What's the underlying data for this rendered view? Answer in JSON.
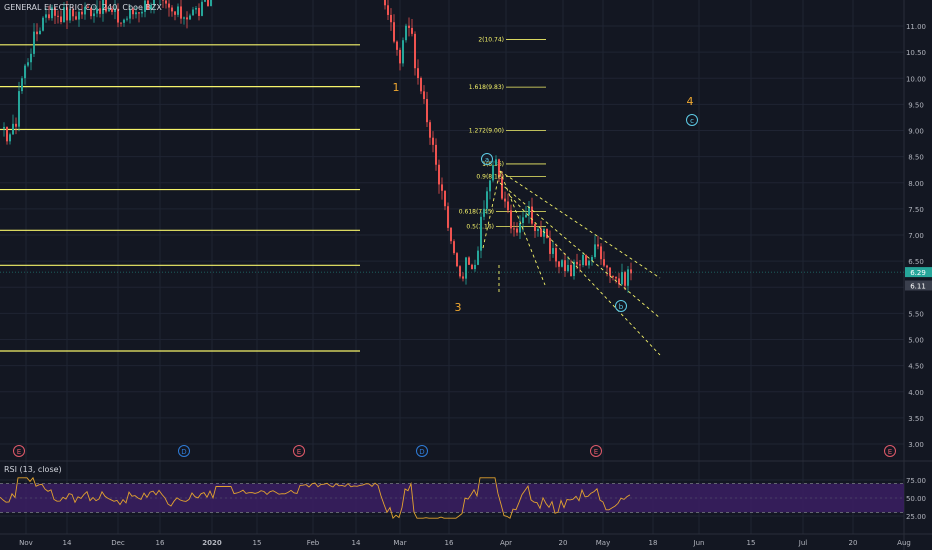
{
  "symbol_title": "GENERAL ELECTRIC CO, 240, Cboe BZX",
  "rsi_title": "RSI (13, close)",
  "colors": {
    "background": "#131722",
    "grid": "#1f2433",
    "up": "#26a69a",
    "down": "#ef5350",
    "level": "#f5f36a",
    "wave": "#f0a830",
    "circle": "#5ecbe6",
    "rsi_line": "#e3a32f",
    "rsi_band": "#3b1f63",
    "axis_text": "#b2b5be"
  },
  "chart_data": [
    {
      "type": "candlestick",
      "title": "GENERAL ELECTRIC CO, 240, Cboe BZX",
      "ylim": [
        2.6,
        11.6
      ],
      "y_ticks": [
        "11.00",
        "10.50",
        "10.00",
        "9.50",
        "9.00",
        "8.50",
        "8.00",
        "7.50",
        "7.00",
        "6.50",
        "6.00",
        "5.50",
        "5.00",
        "4.50",
        "4.00",
        "3.50",
        "3.00"
      ],
      "x_ticks": [
        "Nov",
        "14",
        "Dec",
        "16",
        "2020",
        "15",
        "Feb",
        "14",
        "Mar",
        "16",
        "Apr",
        "20",
        "May",
        "18",
        "Jun",
        "15",
        "Jul",
        "20",
        "Aug"
      ],
      "price_labels": [
        "6.29",
        "6.11"
      ],
      "horizontal_levels": [
        10.64,
        9.84,
        9.02,
        7.87,
        7.09,
        6.42,
        4.78
      ],
      "fib_labels": [
        "2(10.74)",
        "1.618(9.83)",
        "1.272(9.00)",
        "1(8.36)",
        "0.9(8.12)",
        "0.618(7.45)",
        "0.5(7.16)"
      ],
      "fib_values": [
        10.74,
        9.83,
        9.0,
        8.36,
        8.12,
        7.45,
        7.16
      ],
      "wave_labels": [
        "1",
        "3",
        "4"
      ],
      "circle_labels": [
        "a",
        "b",
        "c"
      ],
      "event_markers": [
        "E",
        "D",
        "E",
        "D",
        "E",
        "E"
      ]
    },
    {
      "type": "line",
      "title": "RSI (13, close)",
      "ylim": [
        16,
        84
      ],
      "y_ticks": [
        "75.00",
        "50.00",
        "25.00"
      ],
      "bands": [
        30,
        70
      ]
    }
  ]
}
